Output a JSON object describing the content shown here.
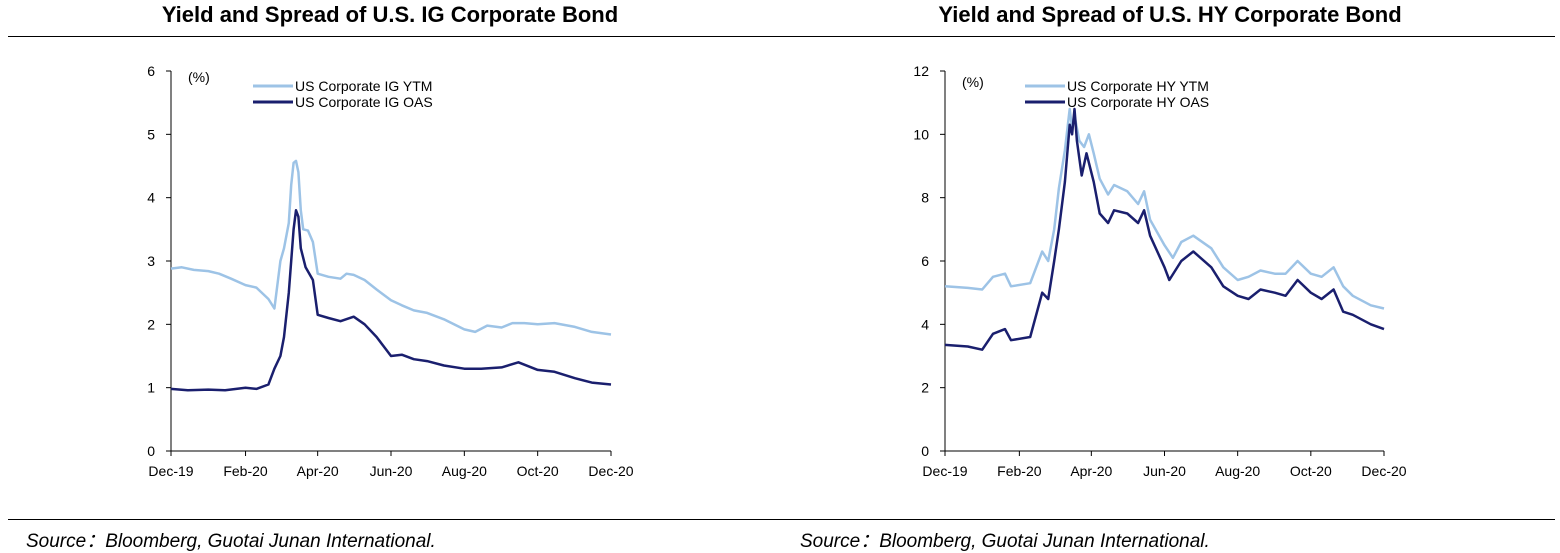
{
  "chart_data": [
    {
      "type": "line",
      "title": "Yield and Spread of U.S. IG Corporate Bond",
      "source": "Source：Bloomberg, Guotai Junan International.",
      "unit_label": "(%)",
      "xlabel": "",
      "ylabel": "",
      "ylim": [
        0,
        6
      ],
      "yticks": [
        0,
        1,
        2,
        3,
        4,
        5,
        6
      ],
      "xlim": [
        "2019-12-01",
        "2020-12-01"
      ],
      "xticks": [
        {
          "date": "2019-12-01",
          "label": "Dec-19"
        },
        {
          "date": "2020-02-01",
          "label": "Feb-20"
        },
        {
          "date": "2020-04-01",
          "label": "Apr-20"
        },
        {
          "date": "2020-06-01",
          "label": "Jun-20"
        },
        {
          "date": "2020-08-01",
          "label": "Aug-20"
        },
        {
          "date": "2020-10-01",
          "label": "Oct-20"
        },
        {
          "date": "2020-12-01",
          "label": "Dec-20"
        }
      ],
      "legend": "top-left",
      "grid": false,
      "series": [
        {
          "name": "US Corporate IG YTM",
          "color": "#9dc3e6",
          "points": [
            [
              "2019-12-01",
              2.88
            ],
            [
              "2019-12-10",
              2.9
            ],
            [
              "2019-12-20",
              2.86
            ],
            [
              "2020-01-01",
              2.84
            ],
            [
              "2020-01-10",
              2.8
            ],
            [
              "2020-01-20",
              2.72
            ],
            [
              "2020-02-01",
              2.62
            ],
            [
              "2020-02-10",
              2.58
            ],
            [
              "2020-02-20",
              2.4
            ],
            [
              "2020-02-25",
              2.25
            ],
            [
              "2020-03-01",
              3.0
            ],
            [
              "2020-03-04",
              3.2
            ],
            [
              "2020-03-08",
              3.6
            ],
            [
              "2020-03-10",
              4.2
            ],
            [
              "2020-03-12",
              4.55
            ],
            [
              "2020-03-14",
              4.58
            ],
            [
              "2020-03-16",
              4.4
            ],
            [
              "2020-03-18",
              3.8
            ],
            [
              "2020-03-20",
              3.5
            ],
            [
              "2020-03-24",
              3.48
            ],
            [
              "2020-03-28",
              3.3
            ],
            [
              "2020-04-01",
              2.8
            ],
            [
              "2020-04-10",
              2.75
            ],
            [
              "2020-04-20",
              2.72
            ],
            [
              "2020-04-25",
              2.8
            ],
            [
              "2020-05-01",
              2.78
            ],
            [
              "2020-05-10",
              2.7
            ],
            [
              "2020-05-20",
              2.55
            ],
            [
              "2020-06-01",
              2.38
            ],
            [
              "2020-06-10",
              2.3
            ],
            [
              "2020-06-20",
              2.22
            ],
            [
              "2020-07-01",
              2.18
            ],
            [
              "2020-07-15",
              2.08
            ],
            [
              "2020-08-01",
              1.92
            ],
            [
              "2020-08-10",
              1.88
            ],
            [
              "2020-08-20",
              1.98
            ],
            [
              "2020-09-01",
              1.95
            ],
            [
              "2020-09-10",
              2.02
            ],
            [
              "2020-09-20",
              2.02
            ],
            [
              "2020-10-01",
              2.0
            ],
            [
              "2020-10-15",
              2.02
            ],
            [
              "2020-11-01",
              1.96
            ],
            [
              "2020-11-15",
              1.88
            ],
            [
              "2020-12-01",
              1.84
            ]
          ]
        },
        {
          "name": "US Corporate IG OAS",
          "color": "#1a1f6e",
          "points": [
            [
              "2019-12-01",
              0.98
            ],
            [
              "2019-12-15",
              0.96
            ],
            [
              "2020-01-01",
              0.97
            ],
            [
              "2020-01-15",
              0.96
            ],
            [
              "2020-02-01",
              1.0
            ],
            [
              "2020-02-10",
              0.98
            ],
            [
              "2020-02-20",
              1.05
            ],
            [
              "2020-02-25",
              1.3
            ],
            [
              "2020-03-01",
              1.5
            ],
            [
              "2020-03-04",
              1.8
            ],
            [
              "2020-03-08",
              2.5
            ],
            [
              "2020-03-10",
              3.0
            ],
            [
              "2020-03-12",
              3.5
            ],
            [
              "2020-03-14",
              3.8
            ],
            [
              "2020-03-16",
              3.7
            ],
            [
              "2020-03-18",
              3.2
            ],
            [
              "2020-03-22",
              2.9
            ],
            [
              "2020-03-28",
              2.7
            ],
            [
              "2020-04-01",
              2.15
            ],
            [
              "2020-04-10",
              2.1
            ],
            [
              "2020-04-20",
              2.05
            ],
            [
              "2020-05-01",
              2.12
            ],
            [
              "2020-05-10",
              2.0
            ],
            [
              "2020-05-20",
              1.8
            ],
            [
              "2020-06-01",
              1.5
            ],
            [
              "2020-06-10",
              1.52
            ],
            [
              "2020-06-20",
              1.45
            ],
            [
              "2020-07-01",
              1.42
            ],
            [
              "2020-07-15",
              1.35
            ],
            [
              "2020-08-01",
              1.3
            ],
            [
              "2020-08-15",
              1.3
            ],
            [
              "2020-09-01",
              1.32
            ],
            [
              "2020-09-15",
              1.4
            ],
            [
              "2020-10-01",
              1.28
            ],
            [
              "2020-10-15",
              1.25
            ],
            [
              "2020-11-01",
              1.15
            ],
            [
              "2020-11-15",
              1.08
            ],
            [
              "2020-12-01",
              1.05
            ]
          ]
        }
      ]
    },
    {
      "type": "line",
      "title": "Yield and Spread of U.S. HY Corporate Bond",
      "source": "Source：Bloomberg, Guotai Junan International.",
      "unit_label": "(%)",
      "xlabel": "",
      "ylabel": "",
      "ylim": [
        0,
        12
      ],
      "yticks": [
        0,
        2,
        4,
        6,
        8,
        10,
        12
      ],
      "xlim": [
        "2019-12-01",
        "2020-12-01"
      ],
      "xticks": [
        {
          "date": "2019-12-01",
          "label": "Dec-19"
        },
        {
          "date": "2020-02-01",
          "label": "Feb-20"
        },
        {
          "date": "2020-04-01",
          "label": "Apr-20"
        },
        {
          "date": "2020-06-01",
          "label": "Jun-20"
        },
        {
          "date": "2020-08-01",
          "label": "Aug-20"
        },
        {
          "date": "2020-10-01",
          "label": "Oct-20"
        },
        {
          "date": "2020-12-01",
          "label": "Dec-20"
        }
      ],
      "legend": "top-left",
      "grid": false,
      "series": [
        {
          "name": "US Corporate HY YTM",
          "color": "#9dc3e6",
          "points": [
            [
              "2019-12-01",
              5.2
            ],
            [
              "2019-12-20",
              5.15
            ],
            [
              "2020-01-01",
              5.1
            ],
            [
              "2020-01-10",
              5.5
            ],
            [
              "2020-01-20",
              5.6
            ],
            [
              "2020-01-25",
              5.2
            ],
            [
              "2020-02-10",
              5.3
            ],
            [
              "2020-02-20",
              6.3
            ],
            [
              "2020-02-25",
              6.0
            ],
            [
              "2020-03-01",
              7.0
            ],
            [
              "2020-03-05",
              8.3
            ],
            [
              "2020-03-10",
              9.5
            ],
            [
              "2020-03-14",
              10.8
            ],
            [
              "2020-03-16",
              10.2
            ],
            [
              "2020-03-18",
              10.6
            ],
            [
              "2020-03-22",
              9.8
            ],
            [
              "2020-03-26",
              9.6
            ],
            [
              "2020-03-30",
              10.0
            ],
            [
              "2020-04-03",
              9.4
            ],
            [
              "2020-04-08",
              8.6
            ],
            [
              "2020-04-15",
              8.1
            ],
            [
              "2020-04-20",
              8.4
            ],
            [
              "2020-05-01",
              8.2
            ],
            [
              "2020-05-10",
              7.8
            ],
            [
              "2020-05-15",
              8.2
            ],
            [
              "2020-05-20",
              7.3
            ],
            [
              "2020-06-01",
              6.5
            ],
            [
              "2020-06-08",
              6.1
            ],
            [
              "2020-06-15",
              6.6
            ],
            [
              "2020-06-25",
              6.8
            ],
            [
              "2020-07-10",
              6.4
            ],
            [
              "2020-07-20",
              5.8
            ],
            [
              "2020-08-01",
              5.4
            ],
            [
              "2020-08-10",
              5.5
            ],
            [
              "2020-08-20",
              5.7
            ],
            [
              "2020-09-01",
              5.6
            ],
            [
              "2020-09-10",
              5.6
            ],
            [
              "2020-09-20",
              6.0
            ],
            [
              "2020-10-01",
              5.6
            ],
            [
              "2020-10-10",
              5.5
            ],
            [
              "2020-10-20",
              5.8
            ],
            [
              "2020-10-28",
              5.2
            ],
            [
              "2020-11-05",
              4.9
            ],
            [
              "2020-11-20",
              4.6
            ],
            [
              "2020-12-01",
              4.5
            ]
          ]
        },
        {
          "name": "US Corporate HY OAS",
          "color": "#1a1f6e",
          "points": [
            [
              "2019-12-01",
              3.35
            ],
            [
              "2019-12-20",
              3.3
            ],
            [
              "2020-01-01",
              3.2
            ],
            [
              "2020-01-10",
              3.7
            ],
            [
              "2020-01-20",
              3.85
            ],
            [
              "2020-01-25",
              3.5
            ],
            [
              "2020-02-10",
              3.6
            ],
            [
              "2020-02-20",
              5.0
            ],
            [
              "2020-02-25",
              4.8
            ],
            [
              "2020-03-01",
              6.0
            ],
            [
              "2020-03-05",
              7.0
            ],
            [
              "2020-03-10",
              8.5
            ],
            [
              "2020-03-14",
              10.3
            ],
            [
              "2020-03-16",
              10.0
            ],
            [
              "2020-03-18",
              10.8
            ],
            [
              "2020-03-20",
              9.8
            ],
            [
              "2020-03-24",
              8.7
            ],
            [
              "2020-03-28",
              9.4
            ],
            [
              "2020-04-03",
              8.5
            ],
            [
              "2020-04-08",
              7.5
            ],
            [
              "2020-04-15",
              7.2
            ],
            [
              "2020-04-20",
              7.6
            ],
            [
              "2020-05-01",
              7.5
            ],
            [
              "2020-05-10",
              7.2
            ],
            [
              "2020-05-15",
              7.6
            ],
            [
              "2020-05-20",
              6.8
            ],
            [
              "2020-06-01",
              5.8
            ],
            [
              "2020-06-05",
              5.4
            ],
            [
              "2020-06-15",
              6.0
            ],
            [
              "2020-06-25",
              6.3
            ],
            [
              "2020-07-10",
              5.8
            ],
            [
              "2020-07-20",
              5.2
            ],
            [
              "2020-08-01",
              4.9
            ],
            [
              "2020-08-10",
              4.8
            ],
            [
              "2020-08-20",
              5.1
            ],
            [
              "2020-09-01",
              5.0
            ],
            [
              "2020-09-10",
              4.9
            ],
            [
              "2020-09-20",
              5.4
            ],
            [
              "2020-10-01",
              5.0
            ],
            [
              "2020-10-10",
              4.8
            ],
            [
              "2020-10-20",
              5.1
            ],
            [
              "2020-10-28",
              4.4
            ],
            [
              "2020-11-05",
              4.3
            ],
            [
              "2020-11-20",
              4.0
            ],
            [
              "2020-12-01",
              3.85
            ]
          ]
        }
      ]
    }
  ]
}
